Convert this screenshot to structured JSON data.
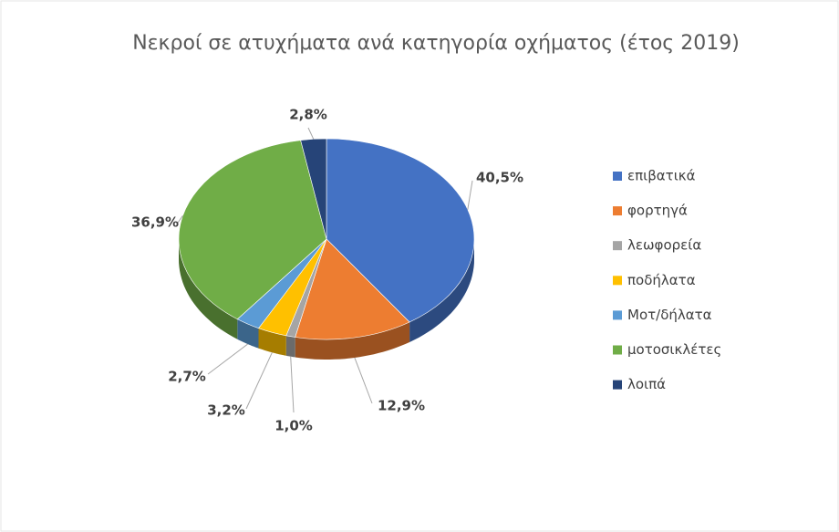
{
  "chart_data": {
    "type": "pie",
    "title": "Νεκροί σε ατυχήματα ανά κατηγορία οχήματος (έτος 2019)",
    "categories": [
      "επιβατικά",
      "φορτηγά",
      "λεωφορεία",
      "ποδήλατα",
      "Μοτ/δήλατα",
      "μοτοσικλέτες",
      "λοιπά"
    ],
    "values": [
      40.5,
      12.9,
      1.0,
      3.2,
      2.7,
      36.9,
      2.8
    ],
    "value_labels": [
      "40,5%",
      "12,9%",
      "1,0%",
      "3,2%",
      "2,7%",
      "36,9%",
      "2,8%"
    ],
    "colors": [
      "#4472c4",
      "#ed7d31",
      "#a5a5a5",
      "#ffc000",
      "#5b9bd5",
      "#70ad47",
      "#264478"
    ],
    "legend": "right"
  }
}
